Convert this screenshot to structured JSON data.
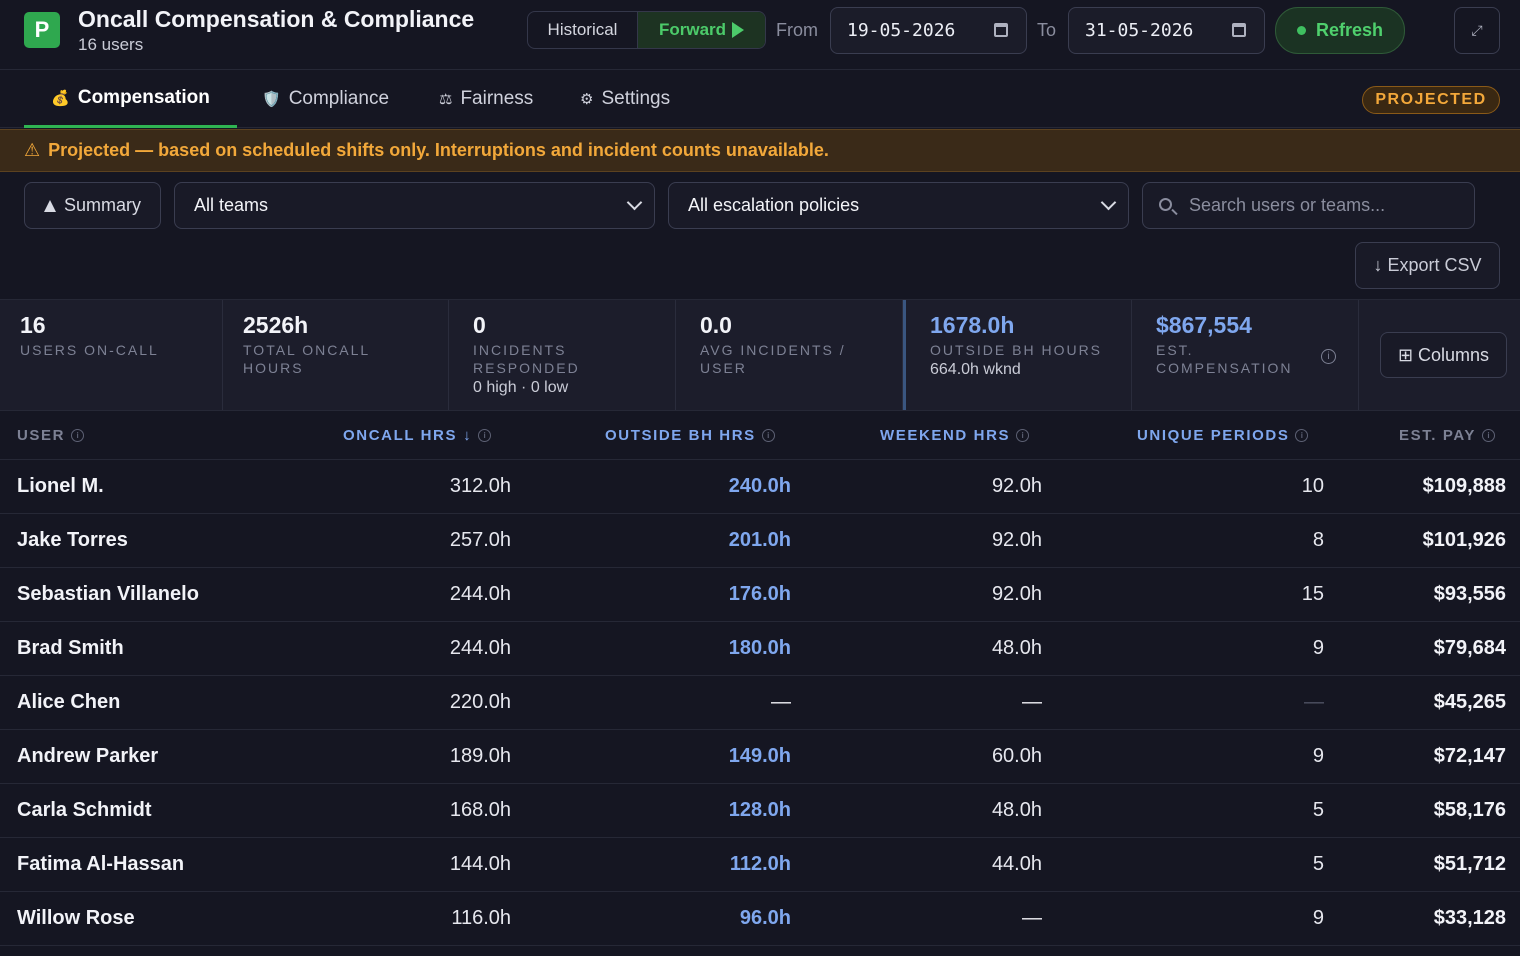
{
  "app": {
    "logo_letter": "P",
    "title": "Oncall Compensation & Compliance",
    "subtitle": "16 users"
  },
  "mode": {
    "historical": "Historical",
    "forward": "Forward",
    "selected": "Forward"
  },
  "dates": {
    "from_label": "From",
    "from_value": "19-05-2026",
    "to_label": "To",
    "to_value": "31-05-2026"
  },
  "refresh_label": "Refresh",
  "tabs": [
    {
      "icon": "💰",
      "label": "Compensation",
      "active": true
    },
    {
      "icon": "🛡️",
      "label": "Compliance"
    },
    {
      "icon": "⚖",
      "label": "Fairness"
    },
    {
      "icon": "⚙",
      "label": "Settings"
    }
  ],
  "badge": "PROJECTED",
  "banner": {
    "icon": "⚠",
    "text": "Projected — based on scheduled shifts only. Interruptions and incident counts unavailable."
  },
  "filters": {
    "summary": "Summary",
    "teams": "All teams",
    "escalation": "All escalation policies",
    "search_placeholder": "Search users or teams..."
  },
  "export_label": "↓ Export CSV",
  "columns_label": "⊞ Columns",
  "stats": [
    {
      "value": "16",
      "label": "USERS ON-CALL"
    },
    {
      "value": "2526h",
      "label": "TOTAL ONCALL HOURS"
    },
    {
      "value": "0",
      "label": "INCIDENTS RESPONDED",
      "sub": "0 high · 0 low"
    },
    {
      "value": "0.0",
      "label": "AVG INCIDENTS / USER"
    },
    {
      "value": "1678.0h",
      "label": "OUTSIDE BH HOURS",
      "sub": "664.0h wknd"
    },
    {
      "value": "$867,554",
      "label": "EST. COMPENSATION"
    }
  ],
  "table": {
    "headers": {
      "user": "USER",
      "oncall": "ONCALL HRS",
      "outside": "OUTSIDE BH HRS",
      "weekend": "WEEKEND HRS",
      "periods": "UNIQUE PERIODS",
      "pay": "EST. PAY"
    },
    "sort_indicator": "↓",
    "rows": [
      {
        "user": "Lionel M.",
        "oncall": "312.0h",
        "outside": "240.0h",
        "weekend": "92.0h",
        "periods": "10",
        "pay": "$109,888"
      },
      {
        "user": "Jake Torres",
        "oncall": "257.0h",
        "outside": "201.0h",
        "weekend": "92.0h",
        "periods": "8",
        "pay": "$101,926"
      },
      {
        "user": "Sebastian Villanelo",
        "oncall": "244.0h",
        "outside": "176.0h",
        "weekend": "92.0h",
        "periods": "15",
        "pay": "$93,556"
      },
      {
        "user": "Brad Smith",
        "oncall": "244.0h",
        "outside": "180.0h",
        "weekend": "48.0h",
        "periods": "9",
        "pay": "$79,684"
      },
      {
        "user": "Alice Chen",
        "oncall": "220.0h",
        "outside": "—",
        "weekend": "—",
        "periods": "—",
        "pay": "$45,265"
      },
      {
        "user": "Andrew Parker",
        "oncall": "189.0h",
        "outside": "149.0h",
        "weekend": "60.0h",
        "periods": "9",
        "pay": "$72,147"
      },
      {
        "user": "Carla Schmidt",
        "oncall": "168.0h",
        "outside": "128.0h",
        "weekend": "48.0h",
        "periods": "5",
        "pay": "$58,176"
      },
      {
        "user": "Fatima Al-Hassan",
        "oncall": "144.0h",
        "outside": "112.0h",
        "weekend": "44.0h",
        "periods": "5",
        "pay": "$51,712"
      },
      {
        "user": "Willow Rose",
        "oncall": "116.0h",
        "outside": "96.0h",
        "weekend": "—",
        "periods": "9",
        "pay": "$33,128"
      }
    ]
  },
  "colors": {
    "accent_green": "#2fb452",
    "warning_orange": "#f2a83a",
    "link_blue": "#7fa7ee",
    "background": "#151622"
  }
}
